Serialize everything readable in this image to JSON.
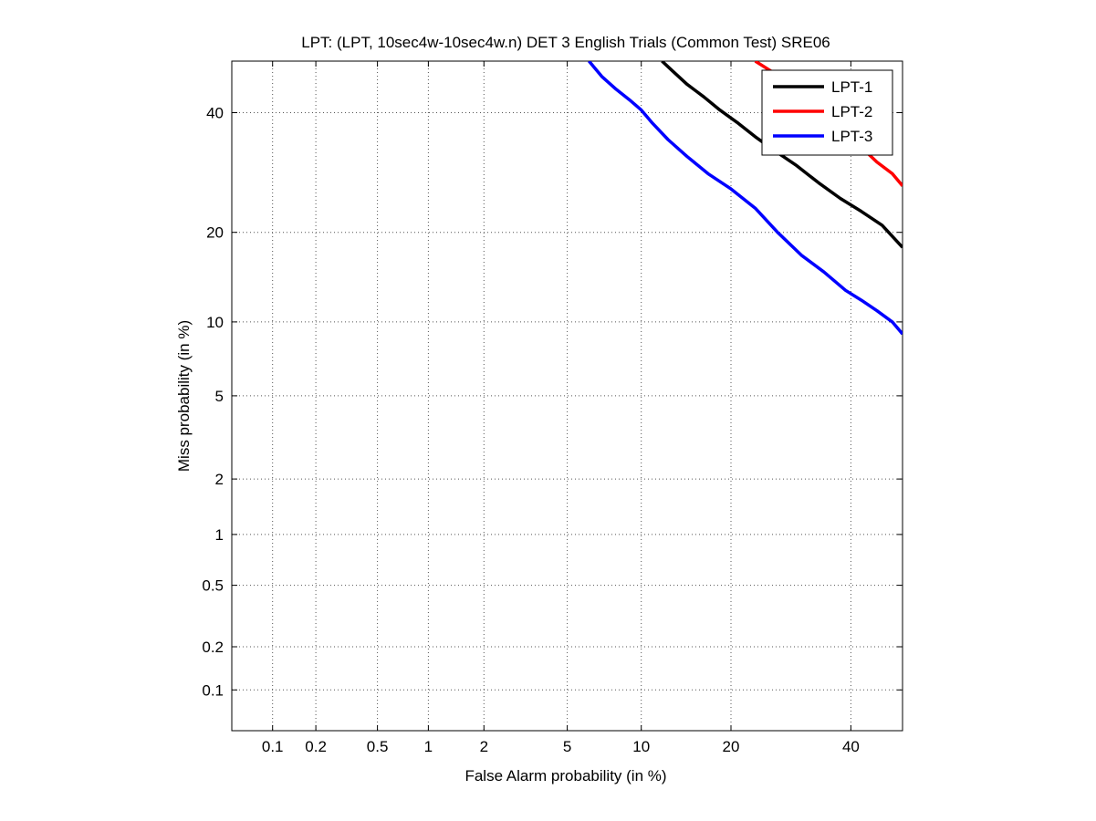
{
  "chart_data": {
    "type": "line",
    "title": "LPT: (LPT, 10sec4w-10sec4w.n) DET 3 English Trials (Common Test) SRE06",
    "xlabel": "False Alarm probability (in %)",
    "ylabel": "Miss probability (in %)",
    "x_scale": "probit",
    "y_scale": "probit",
    "xlim": [
      0.05,
      50
    ],
    "ylim": [
      0.05,
      50
    ],
    "grid": true,
    "legend_position": "top-right",
    "x_ticks": [
      0.1,
      0.2,
      0.5,
      1,
      2,
      5,
      10,
      20,
      40
    ],
    "x_tick_labels": [
      "0.1",
      "0.2",
      "0.5",
      "1",
      "2",
      "5",
      "10",
      "20",
      "40"
    ],
    "y_ticks": [
      0.1,
      0.2,
      0.5,
      1,
      2,
      5,
      10,
      20,
      40
    ],
    "y_tick_labels": [
      "0.1",
      "0.2",
      "0.5",
      "1",
      "2",
      "5",
      "10",
      "20",
      "40"
    ],
    "series": [
      {
        "name": "LPT-1",
        "color": "#000000",
        "x": [
          11.9,
          13.0,
          14.5,
          16.5,
          18.5,
          21.0,
          23.5,
          26.5,
          30.0,
          34.0,
          38.0,
          42.0,
          46.0,
          50.0
        ],
        "y": [
          50.0,
          48.0,
          45.5,
          43.0,
          40.5,
          38.0,
          35.5,
          33.0,
          30.5,
          27.5,
          25.0,
          23.0,
          21.0,
          18.0
        ]
      },
      {
        "name": "LPT-2",
        "color": "#ff0000",
        "x": [
          23.5,
          26.0,
          29.0,
          33.0,
          37.0,
          41.0,
          45.0,
          48.0,
          50.0
        ],
        "y": [
          50.0,
          48.0,
          45.0,
          41.5,
          38.0,
          34.5,
          31.0,
          29.0,
          27.0
        ]
      },
      {
        "name": "LPT-3",
        "color": "#0000ff",
        "x": [
          6.2,
          7.0,
          8.0,
          9.0,
          10.0,
          11.0,
          12.5,
          14.5,
          17.0,
          20.0,
          23.5,
          27.0,
          31.0,
          35.0,
          39.0,
          42.0,
          45.0,
          48.0,
          50.0
        ],
        "y": [
          50.0,
          47.0,
          44.5,
          42.5,
          40.5,
          38.0,
          35.0,
          32.0,
          29.0,
          26.5,
          23.5,
          20.0,
          17.0,
          15.0,
          13.0,
          12.0,
          11.0,
          10.0,
          9.0
        ]
      }
    ]
  }
}
